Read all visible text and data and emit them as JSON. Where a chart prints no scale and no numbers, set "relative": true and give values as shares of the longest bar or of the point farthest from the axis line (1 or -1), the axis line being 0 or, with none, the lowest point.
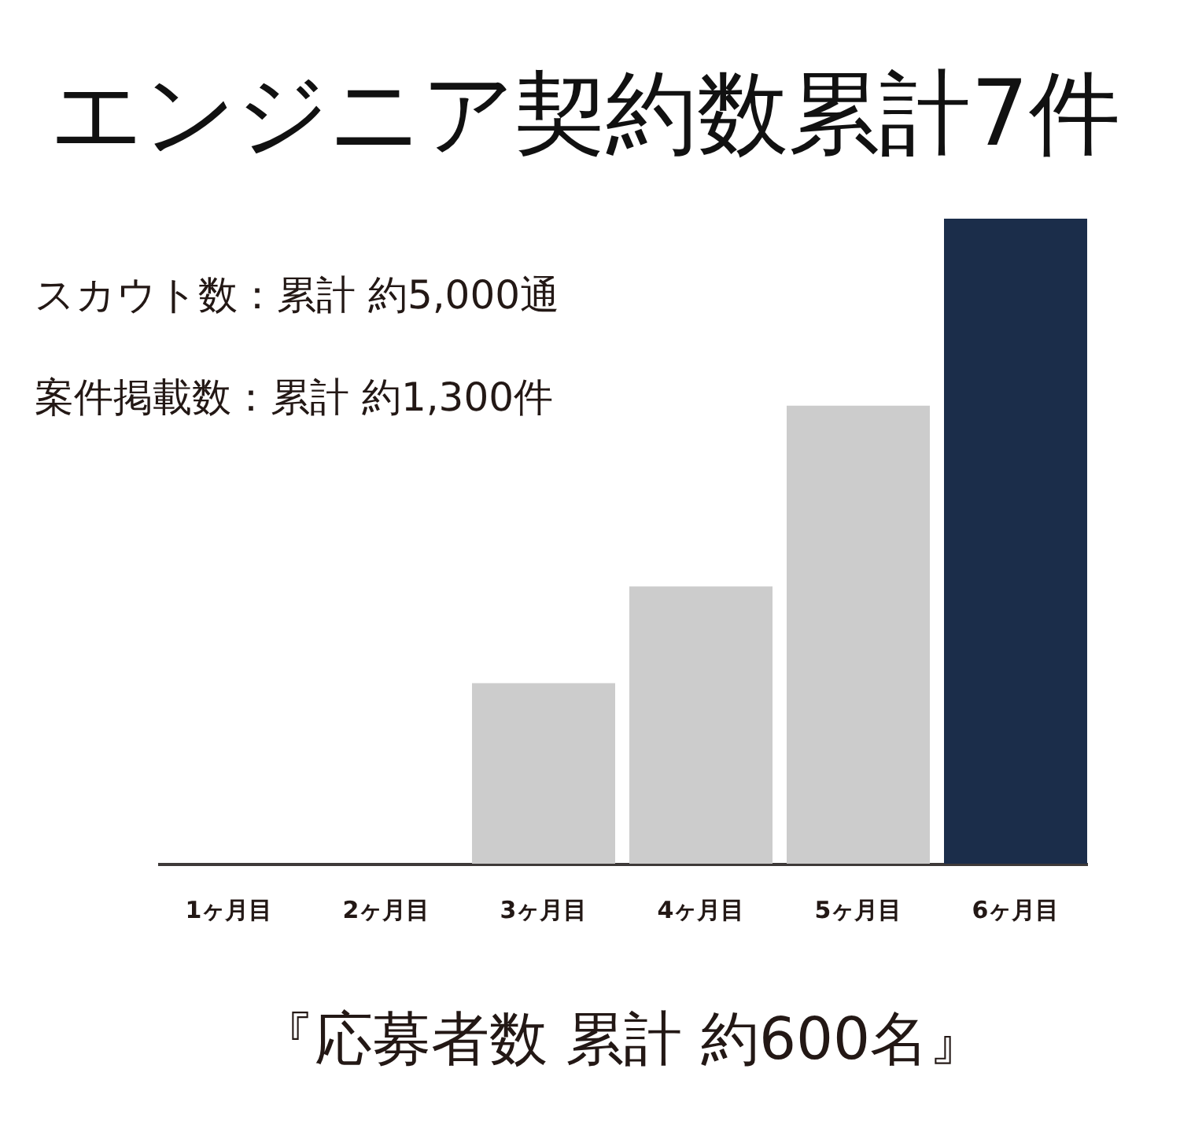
{
  "chart_data": {
    "type": "bar",
    "title": "エンジニア契約数累計7件",
    "categories": [
      "1ヶ月目",
      "2ヶ月目",
      "3ヶ月目",
      "4ヶ月目",
      "5ヶ月目",
      "6ヶ月目"
    ],
    "values": [
      0,
      0,
      0.28,
      0.43,
      0.71,
      1
    ],
    "colors": [
      "#cccccc",
      "#cccccc",
      "#cccccc",
      "#cccccc",
      "#cccccc",
      "#1b2d4a"
    ],
    "relative": true,
    "annotations": [
      "スカウト数：累計 約5,000通",
      "案件掲載数：累計 約1,300件",
      "『応募者数 累計 約600名』"
    ]
  }
}
